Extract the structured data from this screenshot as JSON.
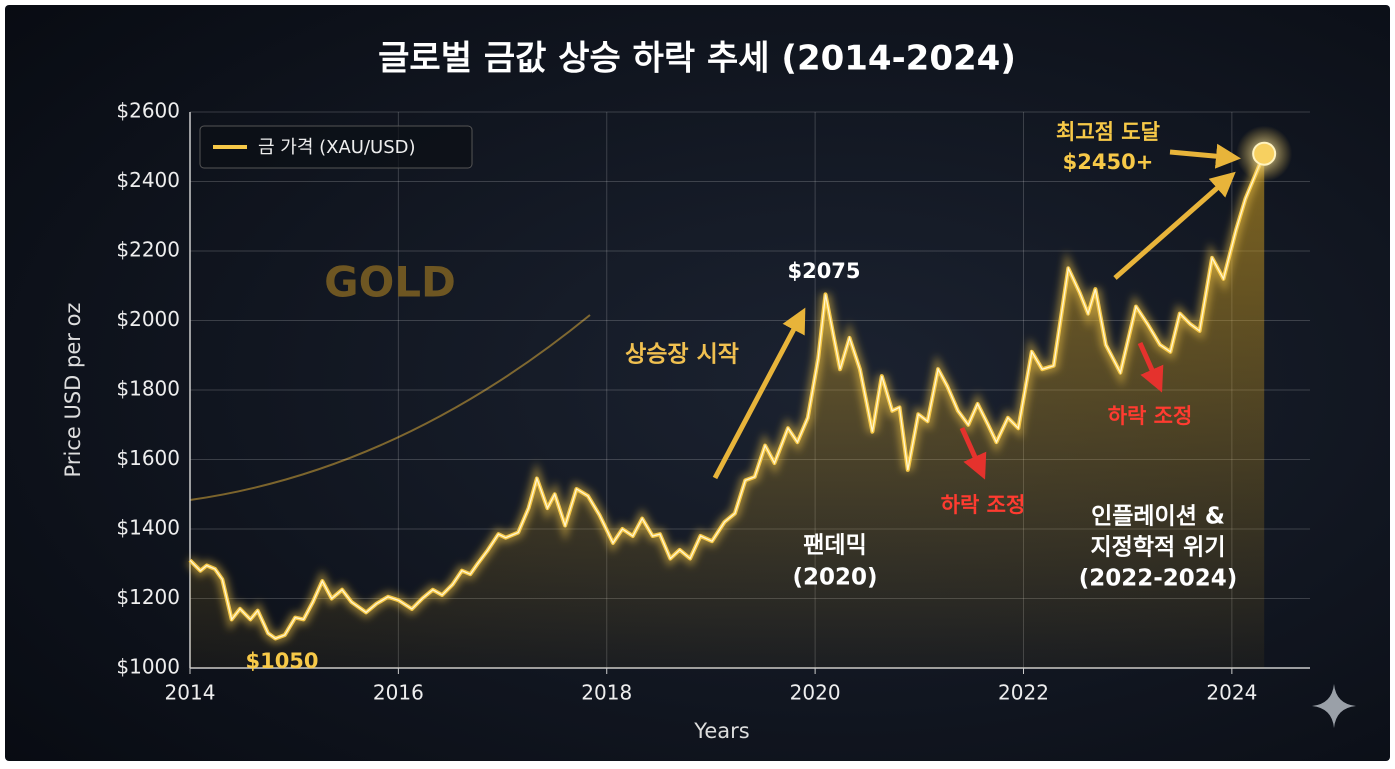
{
  "chart_data": {
    "type": "line",
    "title": "글로벌 금값 상승 하락 추세 (2014-2024)",
    "xlabel": "Years",
    "ylabel": "Price USD per oz",
    "xlim": [
      2014,
      2024.75
    ],
    "xticks": [
      2014,
      2016,
      2018,
      2020,
      2022,
      2024
    ],
    "ylim": [
      1000,
      2600
    ],
    "yticks": [
      {
        "value": 1000,
        "label": "$1000"
      },
      {
        "value": 1200,
        "label": "$1200"
      },
      {
        "value": 1400,
        "label": "$1400"
      },
      {
        "value": 1600,
        "label": "$1600"
      },
      {
        "value": 1800,
        "label": "$1800"
      },
      {
        "value": 2000,
        "label": "$2000"
      },
      {
        "value": 2200,
        "label": "$2200"
      },
      {
        "value": 2400,
        "label": "$2400"
      },
      {
        "value": 2600,
        "label": "$2600"
      }
    ],
    "grid": true,
    "legend": "upper left",
    "x": [
      2014.0,
      2014.1,
      2014.16,
      2014.24,
      2014.31,
      2014.4,
      2014.48,
      2014.58,
      2014.65,
      2014.75,
      2014.82,
      2014.91,
      2015.01,
      2015.09,
      2015.18,
      2015.27,
      2015.36,
      2015.46,
      2015.55,
      2015.69,
      2015.79,
      2015.9,
      2016.0,
      2016.13,
      2016.23,
      2016.33,
      2016.42,
      2016.52,
      2016.61,
      2016.69,
      2016.76,
      2016.86,
      2016.96,
      2017.03,
      2017.15,
      2017.25,
      2017.33,
      2017.43,
      2017.5,
      2017.6,
      2017.71,
      2017.82,
      2017.93,
      2018.06,
      2018.15,
      2018.25,
      2018.34,
      2018.44,
      2018.51,
      2018.61,
      2018.7,
      2018.8,
      2018.9,
      2019.01,
      2019.13,
      2019.23,
      2019.33,
      2019.42,
      2019.52,
      2019.61,
      2019.74,
      2019.83,
      2019.93,
      2020.03,
      2020.1,
      2020.18,
      2020.24,
      2020.33,
      2020.43,
      2020.55,
      2020.64,
      2020.74,
      2020.81,
      2020.89,
      2020.99,
      2021.08,
      2021.18,
      2021.27,
      2021.37,
      2021.47,
      2021.56,
      2021.66,
      2021.74,
      2021.85,
      2021.95,
      2022.08,
      2022.18,
      2022.29,
      2022.43,
      2022.54,
      2022.62,
      2022.69,
      2022.79,
      2022.93,
      2023.08,
      2023.19,
      2023.31,
      2023.41,
      2023.5,
      2023.6,
      2023.69,
      2023.81,
      2023.92,
      2024.04,
      2024.13,
      2024.31
    ],
    "series": [
      {
        "name": "금 가격 (XAU/USD)",
        "color": "#f7c948",
        "values": [
          1310,
          1280,
          1295,
          1285,
          1255,
          1140,
          1170,
          1140,
          1165,
          1100,
          1085,
          1095,
          1145,
          1140,
          1190,
          1250,
          1200,
          1225,
          1190,
          1160,
          1185,
          1205,
          1195,
          1170,
          1200,
          1225,
          1210,
          1240,
          1280,
          1270,
          1300,
          1340,
          1385,
          1375,
          1390,
          1460,
          1545,
          1460,
          1500,
          1410,
          1515,
          1495,
          1440,
          1360,
          1400,
          1380,
          1430,
          1380,
          1385,
          1315,
          1340,
          1315,
          1380,
          1365,
          1420,
          1445,
          1540,
          1550,
          1640,
          1590,
          1690,
          1650,
          1720,
          1890,
          2075,
          1950,
          1860,
          1950,
          1860,
          1680,
          1840,
          1740,
          1750,
          1570,
          1730,
          1710,
          1860,
          1810,
          1740,
          1700,
          1760,
          1700,
          1650,
          1720,
          1690,
          1910,
          1860,
          1870,
          2150,
          2080,
          2020,
          2090,
          1930,
          1850,
          2040,
          1990,
          1930,
          1910,
          2020,
          1990,
          1970,
          2180,
          2120,
          2260,
          2350,
          2480
        ]
      }
    ],
    "annotations": [
      {
        "lines": [
          "$1050"
        ]
      },
      {
        "lines": [
          "$2075"
        ]
      },
      {
        "lines": [
          "상승장 시작"
        ]
      },
      {
        "lines": [
          "팬데믹",
          "(2020)"
        ]
      },
      {
        "lines": [
          "하락 조정"
        ]
      },
      {
        "lines": [
          "하락 조정"
        ]
      },
      {
        "lines": [
          "인플레이션 &",
          "지정학적 위기",
          "(2022-2024)"
        ]
      },
      {
        "lines": [
          "최고점 도달",
          "$2450+"
        ]
      },
      {
        "lines": [
          "GOLD"
        ]
      }
    ]
  }
}
